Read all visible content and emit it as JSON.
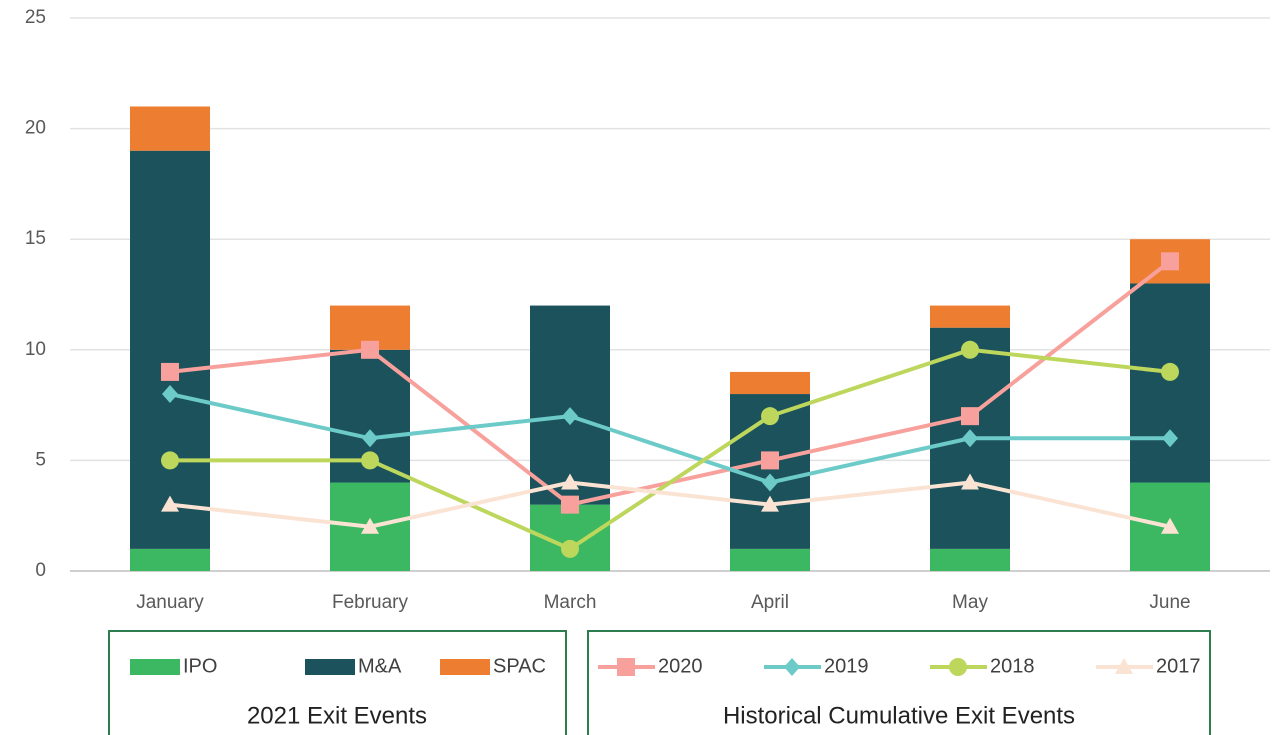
{
  "chart_data": {
    "type": "bar_line",
    "categories": [
      "January",
      "February",
      "March",
      "April",
      "May",
      "June"
    ],
    "series": [
      {
        "name": "IPO",
        "type": "bar",
        "color": "#3cb862",
        "values": [
          1,
          4,
          3,
          1,
          1,
          4
        ]
      },
      {
        "name": "M&A",
        "type": "bar",
        "color": "#1b525c",
        "values": [
          18,
          6,
          9,
          7,
          10,
          9
        ]
      },
      {
        "name": "SPAC",
        "type": "bar",
        "color": "#ed7d31",
        "values": [
          2,
          2,
          0,
          1,
          1,
          2
        ]
      },
      {
        "name": "2020",
        "type": "line",
        "marker": "square",
        "color": "#f8a19c",
        "values": [
          9,
          10,
          3,
          5,
          7,
          14
        ]
      },
      {
        "name": "2019",
        "type": "line",
        "marker": "diamond",
        "color": "#6ccbc8",
        "values": [
          8,
          6,
          7,
          4,
          6,
          6
        ]
      },
      {
        "name": "2018",
        "type": "line",
        "marker": "circle",
        "color": "#bdd65c",
        "values": [
          5,
          5,
          1,
          7,
          10,
          9
        ]
      },
      {
        "name": "2017",
        "type": "line",
        "marker": "triangle",
        "color": "#fbe3d3",
        "values": [
          3,
          2,
          4,
          3,
          4,
          2
        ]
      }
    ],
    "legend_titles": [
      "2021 Exit Events",
      "Historical Cumulative Exit Events"
    ],
    "ylim": [
      0,
      25
    ],
    "yticks": [
      0,
      5,
      10,
      15,
      20,
      25
    ],
    "grid": true
  }
}
